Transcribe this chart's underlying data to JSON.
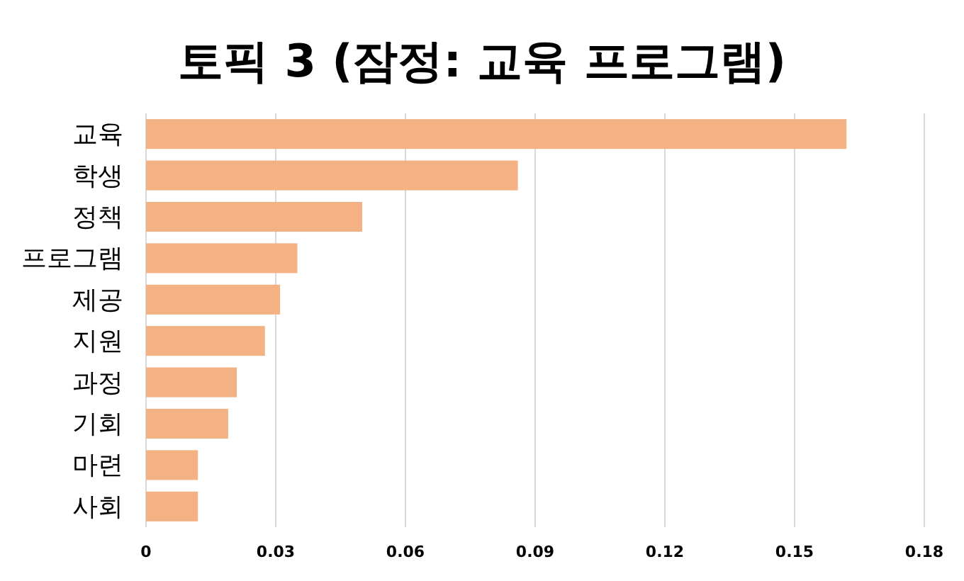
{
  "chart_data": {
    "type": "bar",
    "orientation": "horizontal",
    "title": "토픽 3 (잠정: 교육 프로그램)",
    "categories": [
      "교육",
      "학생",
      "정책",
      "프로그램",
      "제공",
      "지원",
      "과정",
      "기회",
      "마련",
      "사회"
    ],
    "values": [
      0.162,
      0.086,
      0.05,
      0.035,
      0.031,
      0.0275,
      0.021,
      0.019,
      0.012,
      0.012
    ],
    "color": "#f4b183",
    "xlim": [
      0,
      0.18
    ],
    "xticks": [
      0,
      0.03,
      0.06,
      0.09,
      0.12,
      0.15,
      0.18
    ],
    "grid": "x"
  }
}
